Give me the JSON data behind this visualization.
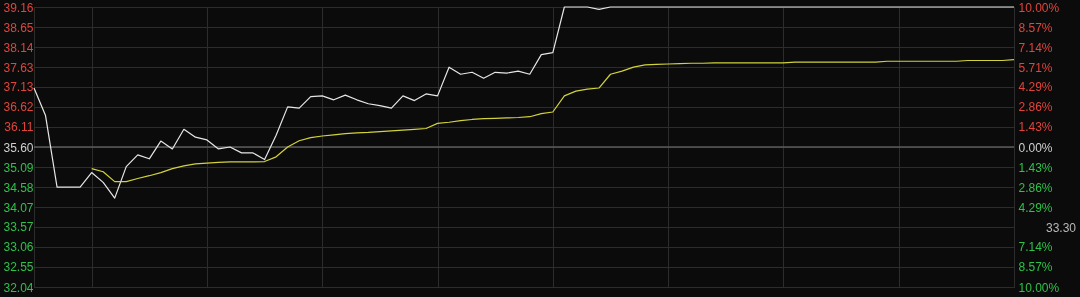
{
  "chart_data": {
    "type": "line",
    "categories": [
      null,
      null,
      null,
      null,
      null,
      null,
      null,
      null,
      null,
      null,
      null,
      null,
      null,
      null,
      null,
      null,
      null,
      null,
      null,
      null,
      null,
      null,
      null,
      null,
      null,
      null,
      null,
      null,
      null,
      null,
      null,
      null,
      null,
      null,
      null,
      null,
      null,
      null,
      null,
      null,
      null,
      null,
      null,
      null,
      null,
      null,
      null,
      null,
      null,
      null,
      null,
      null,
      null,
      null,
      null,
      null,
      null,
      null,
      null,
      null,
      null,
      null,
      null,
      null,
      null,
      null,
      null,
      null,
      null,
      null,
      null,
      null,
      null,
      null,
      null,
      null,
      null,
      null,
      null,
      null,
      null,
      null,
      null,
      null,
      null,
      null
    ],
    "series": [
      {
        "color": "#e6e6e6",
        "values": [
          37.1,
          36.4,
          34.58,
          34.58,
          34.58,
          34.95,
          34.7,
          34.3,
          35.1,
          35.4,
          35.3,
          35.75,
          35.55,
          36.05,
          35.85,
          35.78,
          35.55,
          35.6,
          35.45,
          35.45,
          35.28,
          35.9,
          36.62,
          36.59,
          36.88,
          36.9,
          36.8,
          36.92,
          36.8,
          36.7,
          36.65,
          36.59,
          36.9,
          36.78,
          36.95,
          36.9,
          37.63,
          37.45,
          37.5,
          37.35,
          37.5,
          37.48,
          37.53,
          37.45,
          37.95,
          38.0,
          39.16,
          39.16,
          39.16,
          39.1,
          39.16,
          39.16,
          39.16,
          39.16,
          39.16,
          39.16,
          39.16,
          39.16,
          39.16,
          39.16,
          39.16,
          39.16,
          39.16,
          39.16,
          39.16,
          39.16,
          39.16,
          39.16,
          39.16,
          39.16,
          39.16,
          39.16,
          39.16,
          39.16,
          39.16,
          39.16,
          39.16,
          39.16,
          39.16,
          39.16,
          39.16,
          39.16,
          39.16,
          39.16,
          39.16,
          39.16
        ]
      },
      {
        "color": "#d2d23c",
        "values": [
          null,
          null,
          null,
          null,
          null,
          35.05,
          34.97,
          34.72,
          34.72,
          34.8,
          34.87,
          34.95,
          35.05,
          35.12,
          35.17,
          35.19,
          35.21,
          35.22,
          35.22,
          35.22,
          35.23,
          35.35,
          35.6,
          35.76,
          35.84,
          35.88,
          35.91,
          35.94,
          35.96,
          35.97,
          35.99,
          36.01,
          36.03,
          36.05,
          36.07,
          36.2,
          36.23,
          36.27,
          36.3,
          36.32,
          36.33,
          36.34,
          36.35,
          36.37,
          36.45,
          36.49,
          36.9,
          37.02,
          37.07,
          37.1,
          37.45,
          37.53,
          37.63,
          37.69,
          37.7,
          37.71,
          37.72,
          37.73,
          37.73,
          37.74,
          37.74,
          37.74,
          37.74,
          37.74,
          37.74,
          37.74,
          37.76,
          37.76,
          37.76,
          37.76,
          37.76,
          37.76,
          37.76,
          37.76,
          37.78,
          37.78,
          37.78,
          37.78,
          37.78,
          37.78,
          37.78,
          37.8,
          37.8,
          37.8,
          37.8,
          37.82
        ]
      }
    ],
    "ylim": [
      32.04,
      39.16
    ],
    "yticks": [
      39.16,
      38.65,
      38.14,
      37.63,
      37.13,
      36.62,
      36.11,
      {
        "value": 35.6,
        "label": "35.60"
      },
      35.09,
      34.58,
      34.07,
      33.57,
      33.06,
      32.55,
      32.04
    ],
    "y2lim": [
      -10,
      10
    ],
    "y2ticks": [
      {
        "value": 10,
        "label": "10.00%"
      },
      {
        "value": 8.57,
        "label": "8.57%"
      },
      {
        "value": 7.14,
        "label": "7.14%"
      },
      {
        "value": 5.71,
        "label": "5.71%"
      },
      {
        "value": 4.29,
        "label": "4.29%"
      },
      {
        "value": 2.86,
        "label": "2.86%"
      },
      {
        "value": 1.43,
        "label": "1.43%"
      },
      {
        "value": 0,
        "label": "0.00%"
      },
      {
        "value": -1.43,
        "label": "1.43%"
      },
      {
        "value": -2.86,
        "label": "2.86%"
      },
      {
        "value": -4.29,
        "label": "4.29%"
      },
      {
        "value": -7.14,
        "label": "7.14%"
      },
      {
        "value": -8.57,
        "label": "8.57%"
      },
      {
        "value": -10,
        "label": "10.00%"
      }
    ],
    "ref_lines": [
      {
        "axis": "y",
        "value": 35.6,
        "color": "#5a5a5a"
      }
    ],
    "annotations": [
      "33.30"
    ],
    "grid": true,
    "marker": "none",
    "line_style": "solid"
  }
}
